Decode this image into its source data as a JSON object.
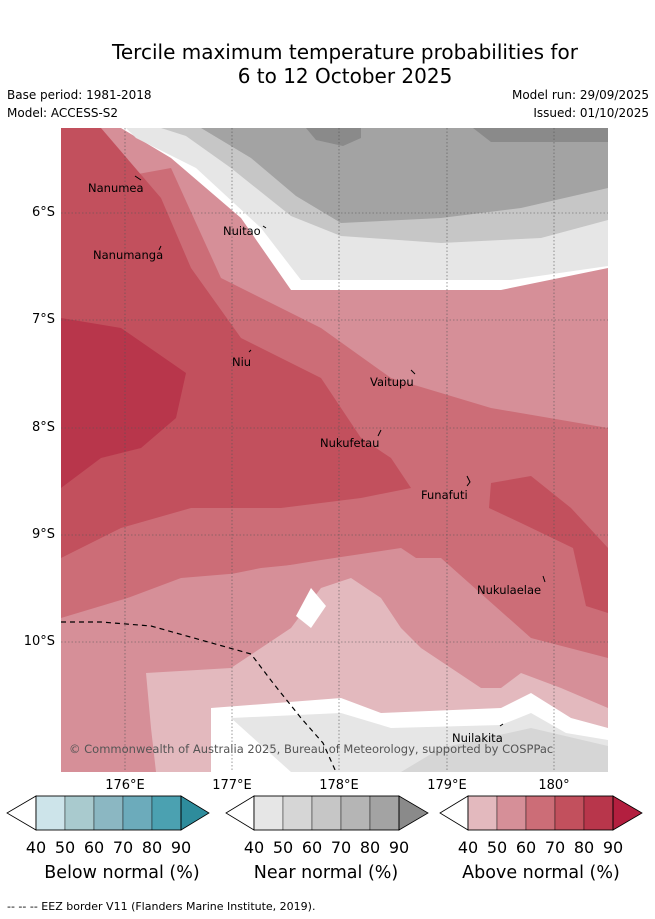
{
  "title": {
    "line1": "Tercile maximum temperature probabilities for",
    "line2": "6 to 12 October 2025"
  },
  "meta": {
    "base_period": "Base period: 1981-2018",
    "model": "Model: ACCESS-S2",
    "model_run": "Model run: 29/09/2025",
    "issued": "Issued: 01/10/2025"
  },
  "map": {
    "latitude_labels": [
      "6°S",
      "7°S",
      "8°S",
      "9°S",
      "10°S"
    ],
    "longitude_labels": [
      "176°E",
      "177°E",
      "178°E",
      "179°E",
      "180°"
    ],
    "places": [
      {
        "name": "Nanumea"
      },
      {
        "name": "Nanumanga"
      },
      {
        "name": "Nuitao"
      },
      {
        "name": "Niu"
      },
      {
        "name": "Vaitupu"
      },
      {
        "name": "Nukufetau"
      },
      {
        "name": "Funafuti"
      },
      {
        "name": "Nukulaelae"
      },
      {
        "name": "Nuilakita"
      }
    ],
    "copyright": "© Commonwealth of Australia 2025, Bureau of Meteorology, supported by COSPPac"
  },
  "legend": {
    "ticks": [
      "40",
      "50",
      "60",
      "70",
      "80",
      "90"
    ],
    "below": {
      "title": "Below normal (%)",
      "colors": [
        "#cde4ea",
        "#a9cace",
        "#8bb7c2",
        "#6cabbb",
        "#4ba1b1",
        "#2e8c9c"
      ]
    },
    "near": {
      "title": "Near normal (%)",
      "colors": [
        "#e6e6e6",
        "#d6d6d6",
        "#c6c6c6",
        "#b5b5b5",
        "#a3a3a3",
        "#8a8a8a"
      ]
    },
    "above": {
      "title": "Above normal (%)",
      "colors": [
        "#e3b9be",
        "#d68f98",
        "#cc6d77",
        "#c2505d",
        "#b8364b",
        "#b31f3f"
      ]
    }
  },
  "footer": "--  --  -- EEZ border V11 (Flanders Marine Institute, 2019)."
}
